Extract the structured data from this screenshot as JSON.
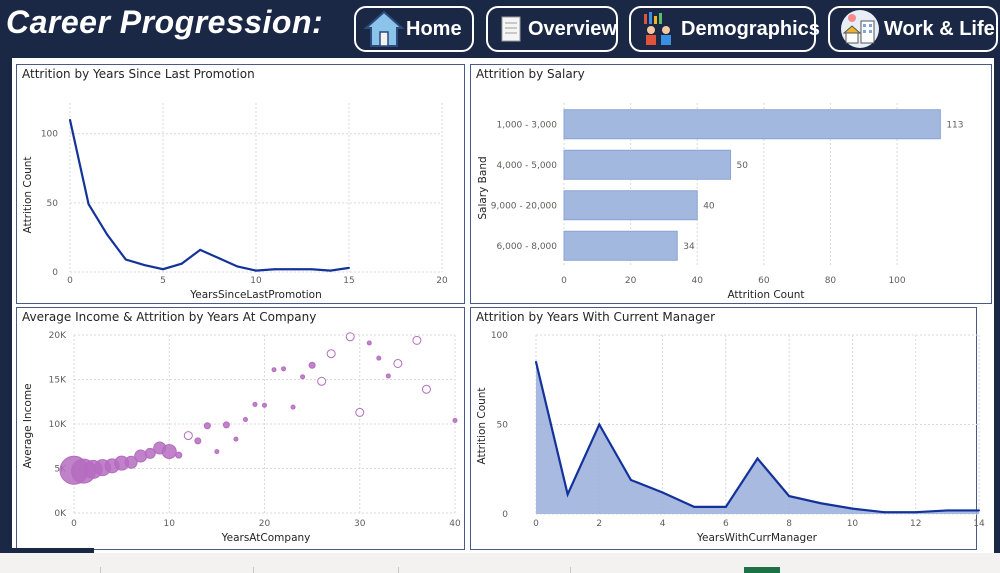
{
  "header": {
    "title": "Career Progression:",
    "nav": [
      {
        "label": "Home",
        "icon": "home-icon"
      },
      {
        "label": "Overview",
        "icon": "document-icon"
      },
      {
        "label": "Demographics",
        "icon": "people-chart-icon"
      },
      {
        "label": "Work & Life",
        "icon": "office-icon"
      }
    ]
  },
  "colors": {
    "line": "#13339b",
    "bar": "#a3b8df",
    "barStroke": "#8aa3d3",
    "area": "#9aaedb",
    "bubble": "#b56cc0",
    "bubbleFill": "rgba(181,108,192,0.85)",
    "grid": "#d9d9d9",
    "header": "#1b2845"
  },
  "chart_data": [
    {
      "type": "line",
      "title": "Attrition by Years Since Last Promotion",
      "xlabel": "YearsSinceLastPromotion",
      "ylabel": "Attrition Count",
      "xlim": [
        0,
        20
      ],
      "ylim": [
        0,
        115
      ],
      "xticks": [
        0,
        5,
        10,
        15,
        20
      ],
      "yticks": [
        0,
        50,
        100
      ],
      "x": [
        0,
        1,
        2,
        3,
        4,
        5,
        6,
        7,
        8,
        9,
        10,
        11,
        12,
        13,
        14,
        15
      ],
      "y": [
        110,
        49,
        27,
        9,
        5,
        2,
        6,
        16,
        10,
        4,
        1,
        2,
        2,
        2,
        1,
        3
      ]
    },
    {
      "type": "bar",
      "orientation": "horizontal",
      "title": "Attrition by Salary",
      "xlabel": "Attrition Count",
      "ylabel": "Salary Band",
      "xlim": [
        0,
        115
      ],
      "xticks": [
        0,
        20,
        40,
        60,
        80,
        100
      ],
      "categories": [
        "1,000 - 3,000",
        "4,000 - 5,000",
        "9,000 - 20,000",
        "6,000 - 8,000"
      ],
      "values": [
        113,
        50,
        40,
        34
      ]
    },
    {
      "type": "scatter",
      "title": "Average Income & Attrition by Years At Company",
      "xlabel": "YearsAtCompany",
      "ylabel": "Average Income",
      "xlim": [
        0,
        40
      ],
      "ylim": [
        0,
        20000
      ],
      "xticks": [
        0,
        10,
        20,
        30,
        40
      ],
      "yticks": [
        "0K",
        "5K",
        "10K",
        "15K",
        "20K"
      ],
      "points": [
        {
          "x": 0,
          "y": 4800,
          "size": 14,
          "hollow": false
        },
        {
          "x": 1,
          "y": 4700,
          "size": 12,
          "hollow": false
        },
        {
          "x": 2,
          "y": 4900,
          "size": 9,
          "hollow": false
        },
        {
          "x": 3,
          "y": 5100,
          "size": 8,
          "hollow": false
        },
        {
          "x": 4,
          "y": 5300,
          "size": 7,
          "hollow": false
        },
        {
          "x": 5,
          "y": 5600,
          "size": 7,
          "hollow": false
        },
        {
          "x": 6,
          "y": 5700,
          "size": 6,
          "hollow": false
        },
        {
          "x": 7,
          "y": 6400,
          "size": 6,
          "hollow": false
        },
        {
          "x": 8,
          "y": 6700,
          "size": 5,
          "hollow": false
        },
        {
          "x": 9,
          "y": 7300,
          "size": 6,
          "hollow": false
        },
        {
          "x": 10,
          "y": 6900,
          "size": 7,
          "hollow": false
        },
        {
          "x": 11,
          "y": 6500,
          "size": 3,
          "hollow": false
        },
        {
          "x": 12,
          "y": 8700,
          "size": 4,
          "hollow": true
        },
        {
          "x": 13,
          "y": 8100,
          "size": 3,
          "hollow": false
        },
        {
          "x": 14,
          "y": 9800,
          "size": 3,
          "hollow": false
        },
        {
          "x": 15,
          "y": 6900,
          "size": 2,
          "hollow": false
        },
        {
          "x": 16,
          "y": 9900,
          "size": 3,
          "hollow": false
        },
        {
          "x": 17,
          "y": 8300,
          "size": 2,
          "hollow": false
        },
        {
          "x": 18,
          "y": 10500,
          "size": 2,
          "hollow": false
        },
        {
          "x": 19,
          "y": 12200,
          "size": 2,
          "hollow": false
        },
        {
          "x": 20,
          "y": 12100,
          "size": 2,
          "hollow": false
        },
        {
          "x": 21,
          "y": 16100,
          "size": 2,
          "hollow": false
        },
        {
          "x": 22,
          "y": 16200,
          "size": 2,
          "hollow": false
        },
        {
          "x": 23,
          "y": 11900,
          "size": 2,
          "hollow": false
        },
        {
          "x": 24,
          "y": 15300,
          "size": 2,
          "hollow": false
        },
        {
          "x": 25,
          "y": 16600,
          "size": 3,
          "hollow": false
        },
        {
          "x": 26,
          "y": 14800,
          "size": 4,
          "hollow": true
        },
        {
          "x": 27,
          "y": 17900,
          "size": 4,
          "hollow": true
        },
        {
          "x": 29,
          "y": 19800,
          "size": 4,
          "hollow": true
        },
        {
          "x": 30,
          "y": 11300,
          "size": 4,
          "hollow": true
        },
        {
          "x": 31,
          "y": 19100,
          "size": 2,
          "hollow": false
        },
        {
          "x": 32,
          "y": 17400,
          "size": 2,
          "hollow": false
        },
        {
          "x": 33,
          "y": 15400,
          "size": 2,
          "hollow": false
        },
        {
          "x": 34,
          "y": 16800,
          "size": 4,
          "hollow": true
        },
        {
          "x": 36,
          "y": 19400,
          "size": 4,
          "hollow": true
        },
        {
          "x": 37,
          "y": 13900,
          "size": 4,
          "hollow": true
        },
        {
          "x": 40,
          "y": 10400,
          "size": 2,
          "hollow": false
        }
      ]
    },
    {
      "type": "area",
      "title": "Attrition by Years With Current Manager",
      "xlabel": "YearsWithCurrManager",
      "ylabel": "Attrition Count",
      "xlim": [
        0,
        14
      ],
      "ylim": [
        0,
        100
      ],
      "xticks": [
        0,
        2,
        4,
        6,
        8,
        10,
        12,
        14
      ],
      "yticks": [
        0,
        50,
        100
      ],
      "x": [
        0,
        1,
        2,
        3,
        4,
        5,
        6,
        7,
        8,
        9,
        10,
        11,
        12,
        13,
        14
      ],
      "y": [
        85,
        11,
        50,
        19,
        12,
        4,
        4,
        31,
        10,
        6,
        3,
        1,
        1,
        2,
        2
      ]
    }
  ]
}
